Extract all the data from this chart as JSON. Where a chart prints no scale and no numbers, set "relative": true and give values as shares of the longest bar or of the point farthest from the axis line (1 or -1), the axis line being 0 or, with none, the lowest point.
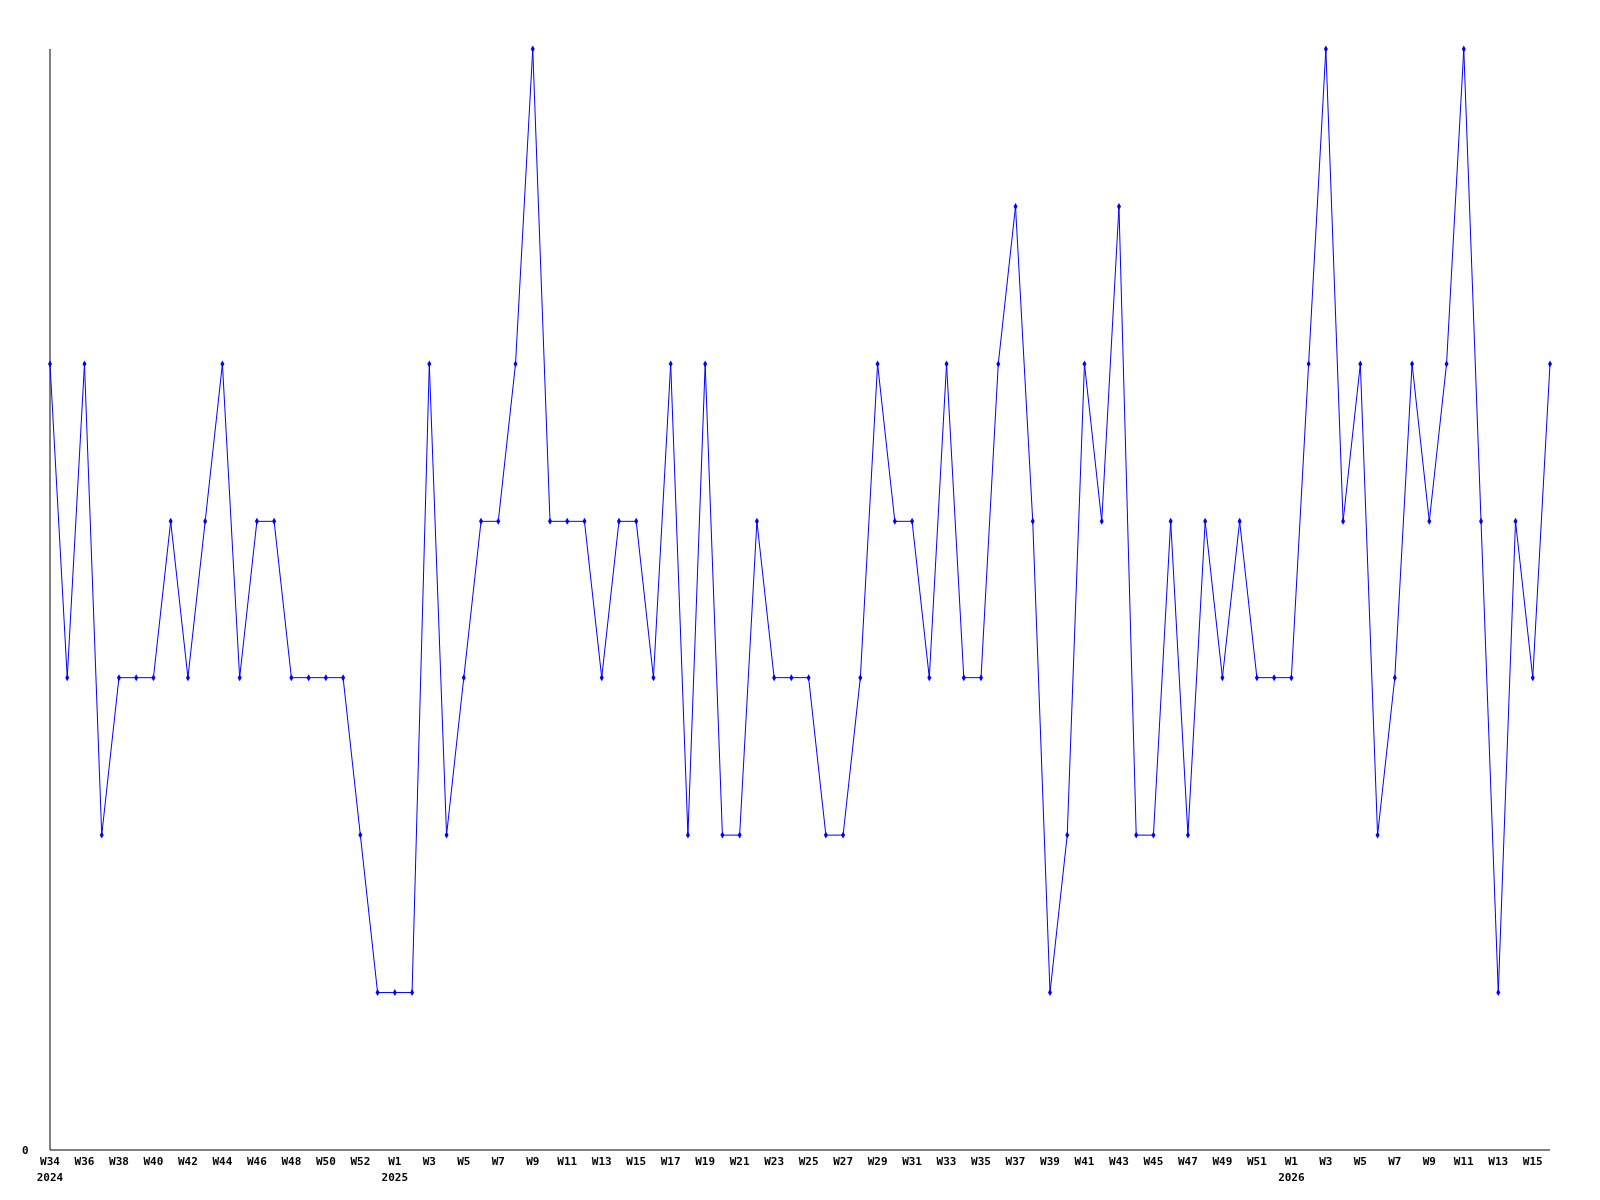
{
  "chart_data": {
    "type": "line",
    "relative": true,
    "categories": [
      "W34\n2024",
      null,
      "W36",
      null,
      "W38",
      null,
      "W40",
      null,
      "W42",
      null,
      "W44",
      null,
      "W46",
      null,
      "W48",
      null,
      "W50",
      null,
      "W52",
      null,
      "W1\n2025",
      null,
      "W3",
      null,
      "W5",
      null,
      "W7",
      null,
      "W9",
      null,
      "W11",
      null,
      "W13",
      null,
      "W15",
      null,
      "W17",
      null,
      "W19",
      null,
      "W21",
      null,
      "W23",
      null,
      "W25",
      null,
      "W27",
      null,
      "W29",
      null,
      "W31",
      null,
      "W33",
      null,
      "W35",
      null,
      "W37",
      null,
      "W39",
      null,
      "W41",
      null,
      "W43",
      null,
      "W45",
      null,
      "W47",
      null,
      "W49",
      null,
      "W51",
      null,
      "W1\n2026",
      null,
      "W3",
      null,
      "W5",
      null,
      "W7",
      null,
      "W9",
      null,
      "W11",
      null,
      "W13",
      null,
      "W15",
      null
    ],
    "series": [
      {
        "color": "#0000ff",
        "values": [
          0.714,
          0.429,
          0.714,
          0.286,
          0.429,
          0.429,
          0.429,
          0.571,
          0.429,
          0.571,
          0.714,
          0.429,
          0.571,
          0.571,
          0.429,
          0.429,
          0.429,
          0.429,
          0.286,
          0.143,
          0.143,
          0.143,
          0.714,
          0.286,
          0.429,
          0.571,
          0.571,
          0.714,
          1,
          0.571,
          0.571,
          0.571,
          0.429,
          0.571,
          0.571,
          0.429,
          0.714,
          0.286,
          0.714,
          0.286,
          0.286,
          0.571,
          0.429,
          0.429,
          0.429,
          0.286,
          0.286,
          0.429,
          0.714,
          0.571,
          0.571,
          0.429,
          0.714,
          0.429,
          0.429,
          0.714,
          0.857,
          0.571,
          0.143,
          0.286,
          0.714,
          0.571,
          0.857,
          0.286,
          0.286,
          0.571,
          0.286,
          0.571,
          0.429,
          0.571,
          0.429,
          0.429,
          0.429,
          0.714,
          1,
          0.571,
          0.714,
          0.286,
          0.429,
          0.714,
          0.571,
          0.714,
          1,
          0.571,
          0.143,
          0.571,
          0.429,
          0.714
        ]
      }
    ],
    "annotations": [
      "0"
    ],
    "marker": "diamond",
    "line_style": "solid",
    "grid": false
  }
}
